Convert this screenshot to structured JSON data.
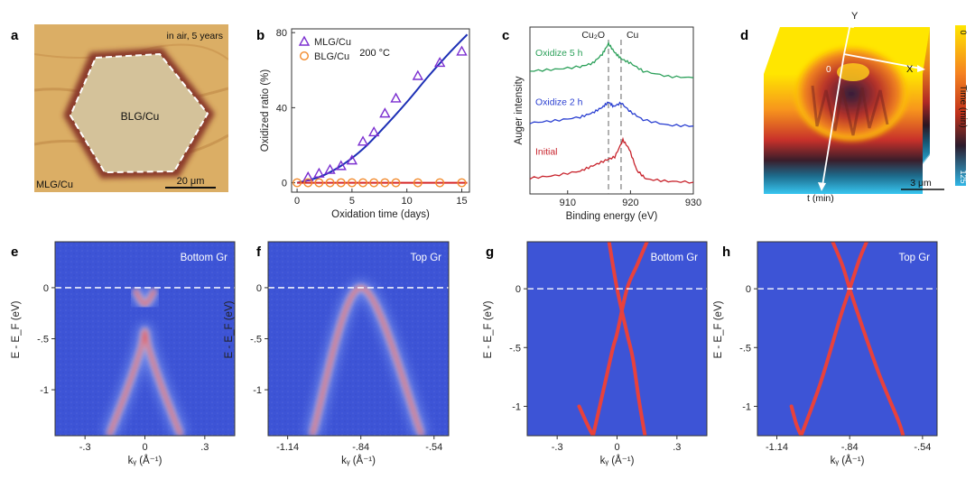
{
  "panels": {
    "a": {
      "letter": "a",
      "note": "in air, 5 years",
      "center_label": "BLG/Cu",
      "corner_label": "MLG/Cu",
      "scale_bar": "20 μm",
      "colors": {
        "background": "#d7a75e",
        "edge": "#8b3a2a",
        "interior": "#d4c29a"
      }
    },
    "b": {
      "letter": "b",
      "temperature": "200 °C",
      "colors": {
        "mlg": "#7b2fd0",
        "blg": "#f28a2c",
        "fit_mlg": "#1c2fb5",
        "fit_blg": "#d62728"
      }
    },
    "c": {
      "letter": "c",
      "peak_labels": [
        "Cu₂O",
        "Cu"
      ],
      "curve_labels": [
        "Oxidize 5 h",
        "Oxidize 2 h",
        "Initial"
      ],
      "colors": {
        "oxidize_5h": "#2ca05a",
        "oxidize_2h": "#2a3fd1",
        "initial": "#c8232c"
      }
    },
    "d": {
      "letter": "d",
      "axis_y": "Y",
      "axis_x": "X",
      "origin": "0",
      "axis_t": "t (min)",
      "scale_bar": "3 μm",
      "colorbar_label": "Time (min)",
      "colorbar_ticks": [
        "0",
        "125"
      ]
    },
    "e": {
      "letter": "e",
      "label": "Bottom Gr"
    },
    "f": {
      "letter": "f",
      "label": "Top Gr"
    },
    "g": {
      "letter": "g",
      "label": "Bottom Gr"
    },
    "h": {
      "letter": "h",
      "label": "Top Gr"
    },
    "arpes_colors": {
      "background": "#3d54d6",
      "band": "#e8413c"
    }
  },
  "chart_data": [
    {
      "id": "b",
      "type": "scatter",
      "title": "",
      "xlabel": "Oxidation time (days)",
      "ylabel": "Oxidized ratio (%)",
      "xlim": [
        -0.5,
        15.7
      ],
      "ylim": [
        -5,
        82
      ],
      "xticks": [
        0,
        5,
        10,
        15
      ],
      "yticks": [
        0,
        40,
        80
      ],
      "legend": "top-left",
      "series": [
        {
          "name": "MLG/Cu",
          "marker": "triangle",
          "x": [
            1,
            2,
            3,
            4,
            5,
            6,
            7,
            8,
            9,
            11,
            13,
            15
          ],
          "y": [
            3,
            5,
            7,
            9,
            12,
            22,
            27,
            37,
            45,
            57,
            64,
            70
          ]
        },
        {
          "name": "BLG/Cu",
          "marker": "circle",
          "x": [
            0,
            1,
            2,
            3,
            4,
            5,
            6,
            7,
            8,
            9,
            11,
            13,
            15
          ],
          "y": [
            0,
            0,
            0,
            0,
            0,
            0,
            0,
            0,
            0,
            0,
            0,
            0,
            0
          ]
        }
      ],
      "fits": [
        {
          "name": "MLG fit",
          "x": [
            0,
            2,
            4,
            6,
            8,
            10,
            12,
            14,
            15.5
          ],
          "y": [
            0,
            3,
            9,
            18,
            30,
            43,
            57,
            70,
            79
          ]
        },
        {
          "name": "BLG fit",
          "x": [
            0,
            15.5
          ],
          "y": [
            0,
            0
          ]
        }
      ]
    },
    {
      "id": "c",
      "type": "line",
      "title": "",
      "xlabel": "Binding energy (eV)",
      "ylabel": "Auger intensity",
      "xlim": [
        904,
        930
      ],
      "xticks": [
        910,
        920,
        930
      ],
      "reference_lines_ev": [
        916.5,
        918.5
      ],
      "series": [
        {
          "name": "Oxidize 5 h",
          "offset": 2.0,
          "x": [
            904,
            908,
            912,
            914,
            915.5,
            916.5,
            917.5,
            918.5,
            920,
            922,
            926,
            930
          ],
          "y": [
            0.3,
            0.34,
            0.4,
            0.48,
            0.68,
            0.92,
            0.72,
            0.58,
            0.48,
            0.3,
            0.18,
            0.15
          ]
        },
        {
          "name": "Oxidize 2 h",
          "offset": 1.0,
          "x": [
            904,
            908,
            912,
            914,
            915.5,
            916.5,
            917.3,
            918.5,
            920,
            922,
            926,
            930
          ],
          "y": [
            0.25,
            0.3,
            0.38,
            0.48,
            0.6,
            0.72,
            0.62,
            0.7,
            0.5,
            0.32,
            0.2,
            0.18
          ]
        },
        {
          "name": "Initial",
          "offset": 0.0,
          "x": [
            904,
            908,
            912,
            914,
            916,
            917.5,
            918.8,
            919.8,
            921,
            922.5,
            926,
            930
          ],
          "y": [
            0.12,
            0.18,
            0.28,
            0.4,
            0.52,
            0.6,
            0.98,
            0.78,
            0.3,
            0.1,
            0.05,
            0.03
          ]
        }
      ]
    },
    {
      "id": "e",
      "type": "heatmap",
      "xlabel": "kᵧ (Å⁻¹)",
      "ylabel": "E - E_F (eV)",
      "xlim": [
        -0.45,
        0.45
      ],
      "ylim": [
        -1.45,
        0.45
      ],
      "xticks": [
        -0.3,
        0,
        0.3
      ],
      "yticks": [
        0,
        -0.5,
        -1
      ],
      "fermi_level": 0,
      "bands": [
        {
          "x": [
            -0.18,
            -0.09,
            -0.02,
            0.0,
            0.02,
            0.09,
            0.18
          ],
          "y": [
            -1.45,
            -1.0,
            -0.6,
            -0.42,
            -0.6,
            -1.0,
            -1.45
          ]
        },
        {
          "x": [
            -0.05,
            0.0,
            0.05
          ],
          "y": [
            -0.02,
            -0.16,
            -0.02
          ]
        }
      ]
    },
    {
      "id": "f",
      "type": "heatmap",
      "xlabel": "kᵧ (Å⁻¹)",
      "ylabel": "E - E_F (eV)",
      "xlim": [
        -1.22,
        -0.48
      ],
      "ylim": [
        -1.45,
        0.45
      ],
      "xticks": [
        -1.14,
        -0.84,
        -0.54
      ],
      "yticks": [
        0,
        -0.5,
        -1
      ],
      "fermi_level": 0,
      "bands": [
        {
          "x": [
            -1.04,
            -0.84,
            -0.59
          ],
          "y": [
            -1.45,
            0.0,
            -1.45
          ]
        }
      ]
    },
    {
      "id": "g",
      "type": "line",
      "xlabel": "kᵧ (Å⁻¹)",
      "ylabel": "E - E_F (eV)",
      "xlim": [
        -0.45,
        0.45
      ],
      "ylim": [
        -1.25,
        0.4
      ],
      "xticks": [
        -0.3,
        0,
        0.3
      ],
      "yticks": [
        0,
        -0.5,
        -1
      ],
      "fermi_level": 0,
      "bands": [
        {
          "x": [
            -0.12,
            -0.06,
            -0.02,
            0.0,
            0.05,
            0.1,
            0.15
          ],
          "y": [
            -1.25,
            -0.8,
            -0.5,
            -0.38,
            0.0,
            0.2,
            0.4
          ]
        },
        {
          "x": [
            -0.04,
            0.0,
            0.05,
            0.08,
            0.11,
            0.14
          ],
          "y": [
            0.4,
            0.0,
            -0.38,
            -0.6,
            -0.95,
            -1.25
          ]
        },
        {
          "x": [
            -0.19,
            -0.15,
            -0.12
          ],
          "y": [
            -1.0,
            -1.15,
            -1.25
          ]
        }
      ]
    },
    {
      "id": "h",
      "type": "line",
      "xlabel": "kᵧ (Å⁻¹)",
      "ylabel": "E - E_F (eV)",
      "xlim": [
        -1.22,
        -0.48
      ],
      "ylim": [
        -1.25,
        0.4
      ],
      "xticks": [
        -1.14,
        -0.84,
        -0.54
      ],
      "yticks": [
        0,
        -0.5,
        -1
      ],
      "fermi_level": 0,
      "bands": [
        {
          "x": [
            -1.04,
            -0.96,
            -0.88,
            -0.84,
            -0.8,
            -0.77
          ],
          "y": [
            -1.25,
            -0.8,
            -0.25,
            0.0,
            0.25,
            0.4
          ]
        },
        {
          "x": [
            -0.91,
            -0.87,
            -0.84,
            -0.8,
            -0.72,
            -0.64,
            -0.62
          ],
          "y": [
            0.4,
            0.2,
            0.0,
            -0.25,
            -0.72,
            -1.12,
            -1.25
          ]
        },
        {
          "x": [
            -1.08,
            -1.06,
            -1.04
          ],
          "y": [
            -1.0,
            -1.15,
            -1.25
          ]
        }
      ]
    }
  ]
}
